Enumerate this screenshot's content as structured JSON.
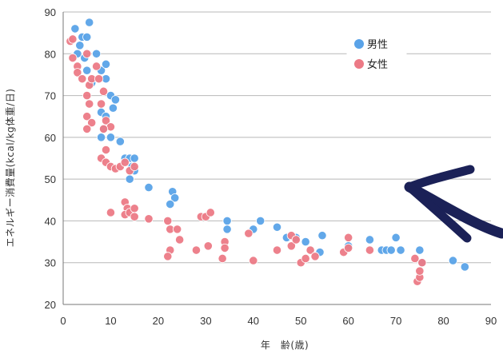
{
  "chart_data": {
    "type": "scatter",
    "title": "",
    "xlabel": "年　齢(歳)",
    "ylabel": "エネルギー消費量(kcal/kg体重/日)",
    "xlim": [
      0,
      90
    ],
    "ylim": [
      20,
      90
    ],
    "x_ticks": [
      0,
      10,
      20,
      30,
      40,
      50,
      60,
      70,
      80,
      90
    ],
    "y_ticks": [
      20,
      30,
      40,
      50,
      60,
      70,
      80,
      90
    ],
    "grid": "horizontal",
    "legend_position": "top-right",
    "annotation": "arrow pointing left toward the curve near age 70, value 49",
    "series": [
      {
        "name": "男性",
        "color": "#5aa3e8",
        "points": [
          [
            2.5,
            86
          ],
          [
            3,
            80
          ],
          [
            3.5,
            82
          ],
          [
            4,
            84
          ],
          [
            5,
            84
          ],
          [
            5.5,
            87.5
          ],
          [
            4.5,
            79
          ],
          [
            5,
            76
          ],
          [
            6,
            73
          ],
          [
            7,
            80
          ],
          [
            8,
            76
          ],
          [
            9,
            77.5
          ],
          [
            9,
            74
          ],
          [
            8,
            66
          ],
          [
            9,
            65
          ],
          [
            10,
            70
          ],
          [
            10.5,
            67
          ],
          [
            11,
            69
          ],
          [
            8,
            60
          ],
          [
            8.5,
            62
          ],
          [
            10,
            60
          ],
          [
            12,
            59
          ],
          [
            13,
            55
          ],
          [
            14,
            55
          ],
          [
            14.5,
            53
          ],
          [
            15,
            55
          ],
          [
            15,
            52
          ],
          [
            14,
            50
          ],
          [
            18,
            48
          ],
          [
            23,
            47
          ],
          [
            23.5,
            45.5
          ],
          [
            22.5,
            44
          ],
          [
            34.5,
            40
          ],
          [
            34.5,
            38
          ],
          [
            40,
            38
          ],
          [
            41.5,
            40
          ],
          [
            45,
            38.5
          ],
          [
            47,
            36
          ],
          [
            49,
            36
          ],
          [
            51,
            35
          ],
          [
            54,
            32.5
          ],
          [
            54.5,
            36.5
          ],
          [
            60,
            34
          ],
          [
            64.5,
            35.5
          ],
          [
            67,
            33
          ],
          [
            68,
            33
          ],
          [
            69,
            33
          ],
          [
            70,
            36
          ],
          [
            71,
            33
          ],
          [
            75,
            33
          ],
          [
            75.5,
            30
          ],
          [
            82,
            30.5
          ],
          [
            84.5,
            29
          ]
        ]
      },
      {
        "name": "女性",
        "color": "#ec7a86",
        "points": [
          [
            1.5,
            83
          ],
          [
            2,
            83.5
          ],
          [
            2,
            79
          ],
          [
            3,
            77
          ],
          [
            3,
            75.5
          ],
          [
            4,
            74
          ],
          [
            5,
            80
          ],
          [
            5.5,
            72.5
          ],
          [
            6,
            74
          ],
          [
            7,
            77
          ],
          [
            7.5,
            74
          ],
          [
            5,
            70
          ],
          [
            5.5,
            68
          ],
          [
            5,
            65
          ],
          [
            6,
            63.5
          ],
          [
            5,
            62
          ],
          [
            8.5,
            71
          ],
          [
            9,
            64
          ],
          [
            10,
            62.5
          ],
          [
            8,
            68
          ],
          [
            8.5,
            62
          ],
          [
            9,
            57
          ],
          [
            8,
            55
          ],
          [
            9,
            54
          ],
          [
            10,
            53
          ],
          [
            11,
            52.5
          ],
          [
            12,
            53
          ],
          [
            13,
            54
          ],
          [
            14,
            52
          ],
          [
            15,
            53
          ],
          [
            13,
            44.5
          ],
          [
            13.5,
            43
          ],
          [
            13,
            41.5
          ],
          [
            14,
            42
          ],
          [
            15,
            43
          ],
          [
            15,
            41
          ],
          [
            10,
            42
          ],
          [
            18,
            40.5
          ],
          [
            22,
            40
          ],
          [
            22.5,
            38
          ],
          [
            24,
            38
          ],
          [
            24.5,
            35.5
          ],
          [
            22.5,
            33
          ],
          [
            22,
            31.5
          ],
          [
            28,
            33
          ],
          [
            29,
            41
          ],
          [
            30,
            41
          ],
          [
            31,
            42
          ],
          [
            34,
            35
          ],
          [
            34,
            33.5
          ],
          [
            33.5,
            31
          ],
          [
            30.5,
            34
          ],
          [
            39,
            37
          ],
          [
            40,
            30.5
          ],
          [
            45,
            33
          ],
          [
            48,
            36.5
          ],
          [
            48,
            34
          ],
          [
            49,
            35.5
          ],
          [
            50,
            30
          ],
          [
            51,
            31
          ],
          [
            52,
            33
          ],
          [
            53,
            31.5
          ],
          [
            59,
            32.5
          ],
          [
            60,
            36
          ],
          [
            60,
            33.5
          ],
          [
            64.5,
            33
          ],
          [
            74,
            31
          ],
          [
            74.5,
            25.5
          ],
          [
            75,
            26.5
          ],
          [
            75,
            28
          ],
          [
            75.5,
            30
          ]
        ]
      }
    ]
  }
}
